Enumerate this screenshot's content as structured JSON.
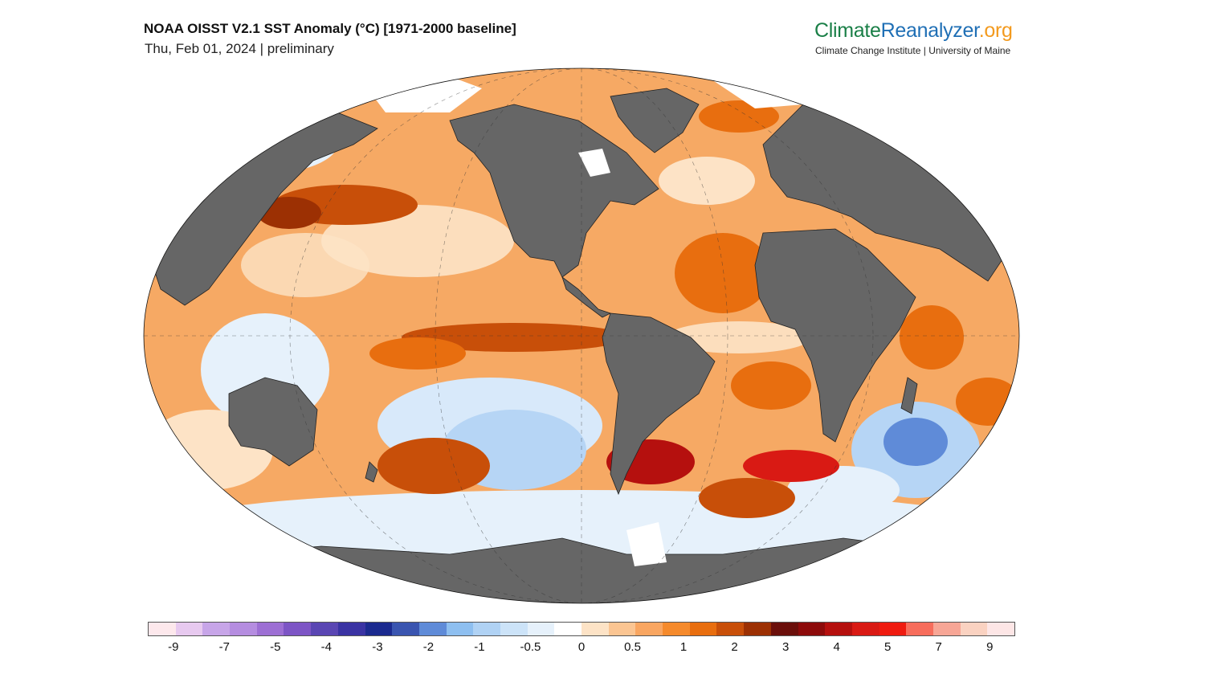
{
  "header": {
    "title": "NOAA OISST V2.1 SST Anomaly (°C) [1971-2000 baseline]",
    "subtitle": "Thu, Feb 01, 2024 | preliminary"
  },
  "brand": {
    "part1": "Climate",
    "part2": "Reanalyzer",
    "part3": ".org",
    "tagline": "Climate Change Institute | University of Maine",
    "colors": {
      "climate": "#1a7f47",
      "reanalyzer": "#1f6fb5",
      "org": "#f39a1e"
    }
  },
  "map": {
    "projection": "Robinson",
    "variable": "SST Anomaly",
    "land_color": "#666666",
    "ice_color": "#ffffff"
  },
  "legend": {
    "colors": [
      "#fde8ec",
      "#e7c9ef",
      "#c7a5e8",
      "#b58de0",
      "#9d6fd4",
      "#7d55c5",
      "#5a46b3",
      "#3a33a3",
      "#1b2a8f",
      "#3a55b0",
      "#5f8bd8",
      "#8ebff0",
      "#b0d2f4",
      "#cce3f8",
      "#e6f1fb",
      "#ffffff",
      "#fde3c6",
      "#fbc592",
      "#f9a661",
      "#f58a2c",
      "#e86e0f",
      "#c84f09",
      "#9c3003",
      "#6b0f0b",
      "#8d0b0b",
      "#b5100e",
      "#d91a14",
      "#ef1b10",
      "#f76d5c",
      "#f7a696",
      "#fad2c1",
      "#fde6e6"
    ],
    "ticks": [
      "-9",
      "-7",
      "-5",
      "-4",
      "-3",
      "-2",
      "-1",
      "-0.5",
      "0",
      "0.5",
      "1",
      "2",
      "3",
      "4",
      "5",
      "7",
      "9"
    ]
  }
}
